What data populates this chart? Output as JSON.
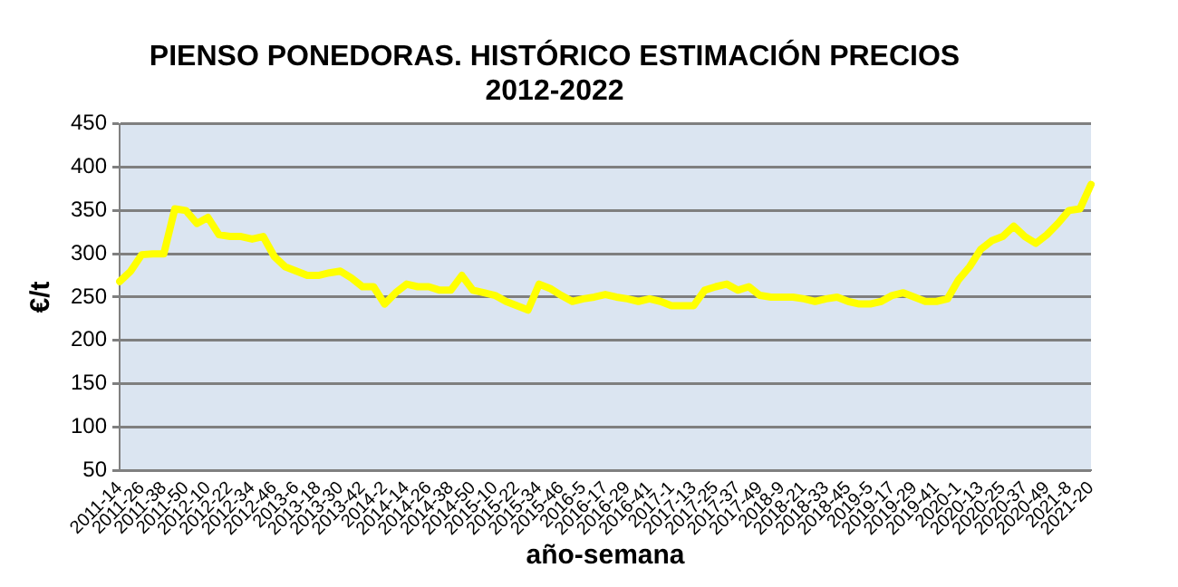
{
  "chart_data": {
    "type": "line",
    "title": "PIENSO PONEDORAS. HISTÓRICO ESTIMACIÓN PRECIOS\n2012-2022",
    "xlabel": "año-semana",
    "ylabel": "€/t",
    "categories": [
      "2011-14",
      null,
      "2011-26",
      null,
      "2011-38",
      null,
      "2011-50",
      null,
      "2012-10",
      null,
      "2012-22",
      null,
      "2012-34",
      null,
      "2012-46",
      null,
      "2013-6",
      null,
      "2013-18",
      null,
      "2013-30",
      null,
      "2013-42",
      null,
      "2014-2",
      null,
      "2014-14",
      null,
      "2014-26",
      null,
      "2014-38",
      null,
      "2014-50",
      null,
      "2015-10",
      null,
      "2015-22",
      null,
      "2015-34",
      null,
      "2015-46",
      null,
      "2016-5",
      null,
      "2016-17",
      null,
      "2016-29",
      null,
      "2016-41",
      null,
      "2017-1",
      null,
      "2017-13",
      null,
      "2017-25",
      null,
      "2017-37",
      null,
      "2017-49",
      null,
      "2018-9",
      null,
      "2018-21",
      null,
      "2018-33",
      null,
      "2018-45",
      null,
      "2019-5",
      null,
      "2019-17",
      null,
      "2019-29",
      null,
      "2019-41",
      null,
      "2020-1",
      null,
      "2020-13",
      null,
      "2020-25",
      null,
      "2020-37",
      null,
      "2020-49",
      null,
      "2021-8",
      null,
      "2021-20"
    ],
    "series": [
      {
        "color": "#ffff00",
        "values": [
          268,
          280,
          299,
          300,
          300,
          352,
          350,
          335,
          342,
          322,
          320,
          320,
          317,
          320,
          297,
          285,
          280,
          275,
          275,
          278,
          280,
          272,
          262,
          262,
          242,
          255,
          265,
          262,
          262,
          258,
          258,
          275,
          258,
          255,
          252,
          245,
          240,
          235,
          265,
          260,
          252,
          245,
          248,
          250,
          253,
          250,
          248,
          245,
          248,
          245,
          240,
          240,
          240,
          258,
          262,
          265,
          258,
          262,
          252,
          250,
          250,
          250,
          248,
          245,
          248,
          250,
          245,
          242,
          242,
          245,
          252,
          255,
          250,
          245,
          245,
          248,
          270,
          285,
          305,
          315,
          320,
          332,
          320,
          312,
          322,
          335,
          350,
          352,
          380
        ]
      }
    ],
    "ylim": [
      50,
      450
    ],
    "yticks": [
      50,
      100,
      150,
      200,
      250,
      300,
      350,
      400,
      450
    ],
    "grid": "y",
    "legend": false,
    "marker": "none",
    "line_style": "solid"
  }
}
